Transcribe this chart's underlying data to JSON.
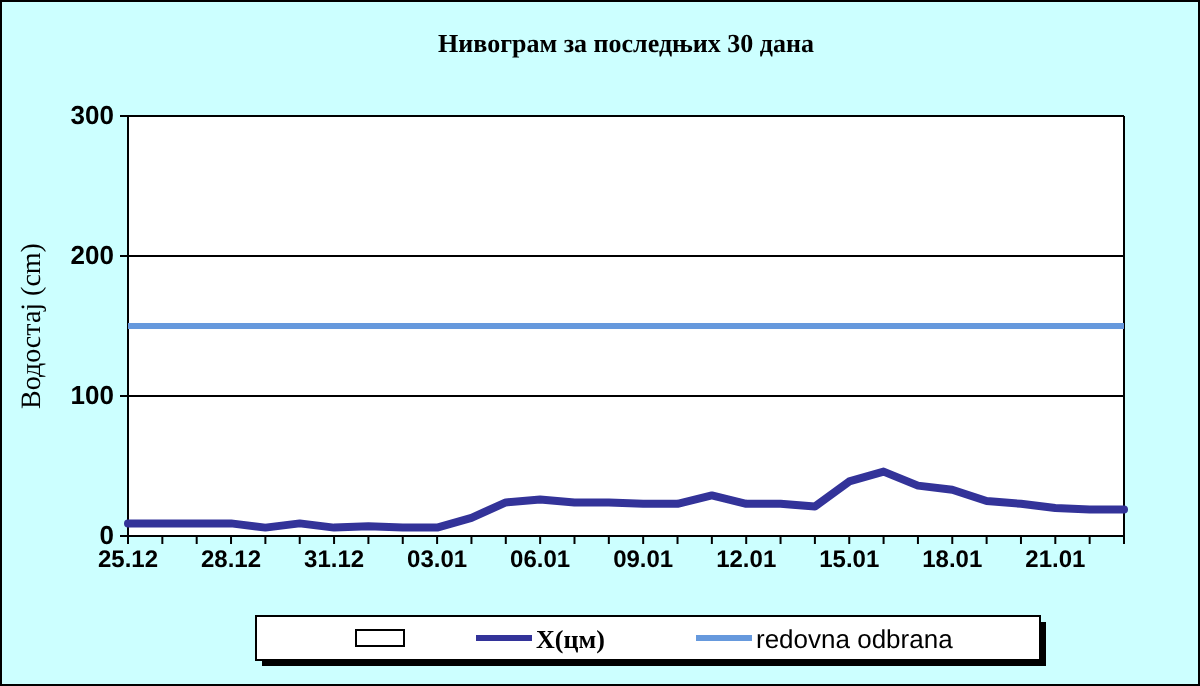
{
  "chart_data": {
    "type": "line",
    "title": "Нивограм за последњих 30 дана",
    "ylabel": "Водостај (cm)",
    "categories": [
      "25.12",
      null,
      null,
      "28.12",
      null,
      null,
      "31.12",
      null,
      null,
      "03.01",
      null,
      null,
      "06.01",
      null,
      null,
      "09.01",
      null,
      null,
      "12.01",
      null,
      null,
      "15.01",
      null,
      null,
      "18.01",
      null,
      null,
      "21.01",
      null,
      null
    ],
    "series": [
      {
        "name": "X(цм)",
        "color": "#333399",
        "values": [
          9,
          9,
          9,
          9,
          6,
          9,
          6,
          7,
          6,
          6,
          13,
          24,
          26,
          24,
          24,
          23,
          23,
          29,
          23,
          23,
          21,
          39,
          46,
          36,
          33,
          25,
          23,
          20,
          19,
          19
        ]
      }
    ],
    "ref_lines": [
      {
        "axis": "y",
        "value": 150,
        "label": "redovna odbrana",
        "color": "#6699dd"
      }
    ],
    "ylim": [
      0,
      300
    ],
    "yticks": [
      0,
      100,
      200,
      300
    ],
    "grid": "y",
    "legend": "bottom"
  }
}
